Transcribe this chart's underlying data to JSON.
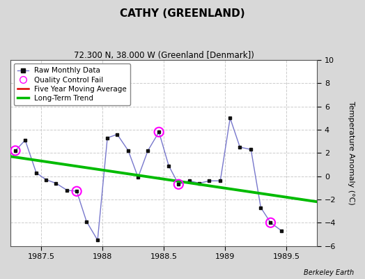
{
  "title": "CATHY (GREENLAND)",
  "subtitle": "72.300 N, 38.000 W (Greenland [Denmark])",
  "ylabel": "Temperature Anomaly (°C)",
  "credit": "Berkeley Earth",
  "xlim": [
    1987.25,
    1989.75
  ],
  "ylim": [
    -6,
    10
  ],
  "xticks": [
    1987.5,
    1988.0,
    1988.5,
    1989.0,
    1989.5
  ],
  "xticklabels": [
    "1987.5",
    "1988",
    "1988.5",
    "1989",
    "1989.5"
  ],
  "yticks": [
    -6,
    -4,
    -2,
    0,
    2,
    4,
    6,
    8,
    10
  ],
  "plot_bg": "#ffffff",
  "fig_bg": "#d8d8d8",
  "raw_x": [
    1987.29,
    1987.37,
    1987.46,
    1987.54,
    1987.62,
    1987.71,
    1987.79,
    1987.87,
    1987.96,
    1988.04,
    1988.12,
    1988.21,
    1988.29,
    1988.37,
    1988.46,
    1988.54,
    1988.62,
    1988.71,
    1988.79,
    1988.87,
    1988.96,
    1989.04,
    1989.12,
    1989.21,
    1989.29,
    1989.37,
    1989.46
  ],
  "raw_y": [
    2.2,
    3.1,
    0.3,
    -0.3,
    -0.6,
    -1.2,
    -1.3,
    -3.9,
    -5.5,
    3.3,
    3.6,
    2.2,
    -0.1,
    2.2,
    3.8,
    0.9,
    -0.7,
    -0.4,
    -0.6,
    -0.4,
    -0.4,
    5.0,
    2.5,
    2.3,
    -2.7,
    -4.0,
    -4.7
  ],
  "qc_fail_x": [
    1987.29,
    1987.79,
    1988.46,
    1988.62,
    1989.37
  ],
  "qc_fail_y": [
    2.2,
    -1.3,
    3.8,
    -0.7,
    -4.0
  ],
  "trend_x": [
    1987.25,
    1989.75
  ],
  "trend_y": [
    1.7,
    -2.2
  ],
  "raw_line_color": "#7777cc",
  "raw_marker_color": "#111111",
  "qc_color": "#ff00ff",
  "trend_color": "#00bb00",
  "ma_color": "#dd0000",
  "grid_color": "#cccccc"
}
